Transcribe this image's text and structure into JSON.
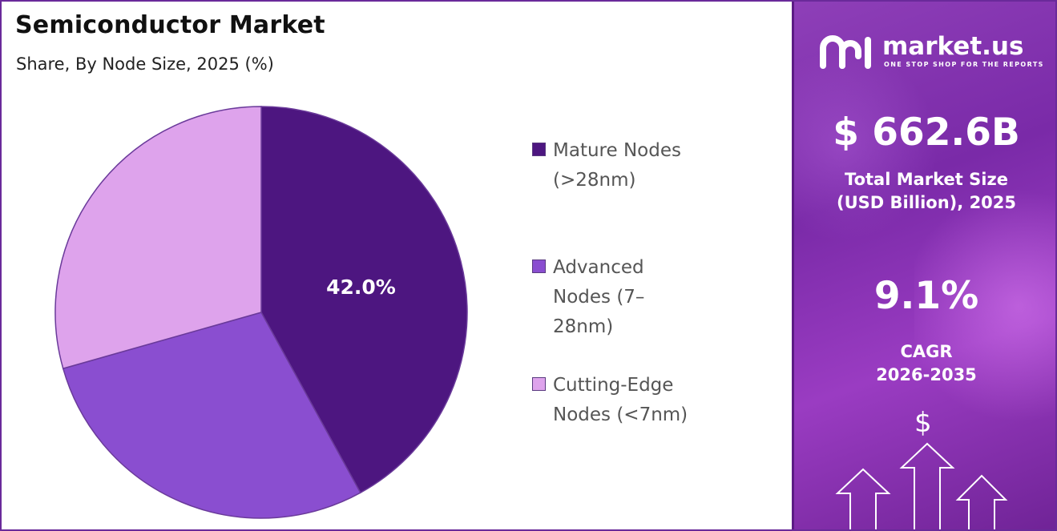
{
  "header": {
    "title": "Semiconductor Market",
    "subtitle": "Share, By Node Size, 2025 (%)"
  },
  "chart_data": {
    "type": "pie",
    "title": "Semiconductor Market",
    "subtitle": "Share, By Node Size, 2025 (%)",
    "categories": [
      "Mature Nodes (>28nm)",
      "Advanced Nodes (7–28nm)",
      "Cutting-Edge Nodes (<7nm)"
    ],
    "values": [
      42.0,
      28.6,
      29.4
    ],
    "colors": [
      "#4d1680",
      "#8a4ed0",
      "#dea3ec"
    ],
    "data_labels": [
      "42.0%",
      "",
      ""
    ],
    "legend_position": "right"
  },
  "legend": {
    "items": [
      {
        "label": "Mature Nodes (>28nm)",
        "color": "#4d1680"
      },
      {
        "label": "Advanced Nodes (7–28nm)",
        "color": "#8a4ed0"
      },
      {
        "label": "Cutting-Edge Nodes (<7nm)",
        "color": "#dea3ec"
      }
    ]
  },
  "sidebar": {
    "brand": "market.us",
    "tagline": "ONE STOP SHOP FOR THE REPORTS",
    "market_size_value": "$ 662.6B",
    "market_size_label_line1": "Total Market Size",
    "market_size_label_line2": "(USD Billion), 2025",
    "cagr_value": "9.1%",
    "cagr_label_line1": "CAGR",
    "cagr_label_line2": "2026-2035",
    "dollar_symbol": "$",
    "icons": [
      "market-us-logo-icon",
      "up-arrow-icon"
    ]
  },
  "colors": {
    "accent_purple": "#7a2aa8",
    "border": "#6a2a9a"
  }
}
